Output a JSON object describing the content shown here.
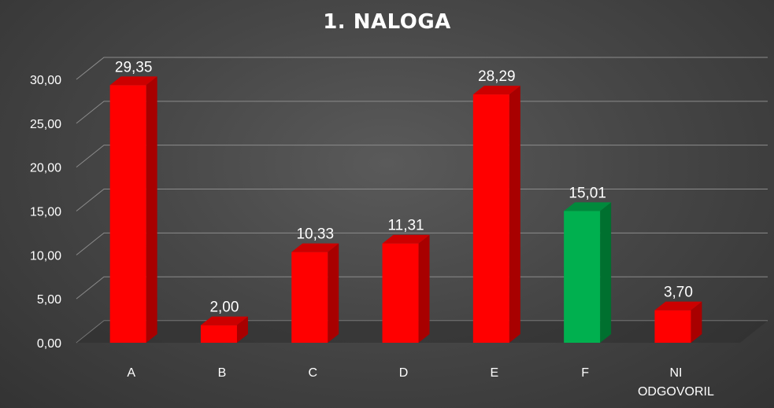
{
  "chart_data": {
    "type": "bar",
    "title": "1. NALOGA",
    "categories": [
      [
        "A"
      ],
      [
        "B"
      ],
      [
        "C"
      ],
      [
        "D"
      ],
      [
        "E"
      ],
      [
        "F"
      ],
      [
        "NI",
        "ODGOVORIL"
      ]
    ],
    "values": [
      29.35,
      2.0,
      10.33,
      11.31,
      28.29,
      15.01,
      3.7
    ],
    "data_labels": [
      "29,35",
      "2,00",
      "10,33",
      "11,31",
      "28,29",
      "15,01",
      "3,70"
    ],
    "ytick_labels": [
      "0,00",
      "5,00",
      "10,00",
      "15,00",
      "20,00",
      "25,00",
      "30,00"
    ],
    "ylim": [
      0,
      30
    ],
    "grid": true,
    "style": "3d-column",
    "colors": {
      "default_bar": "#ff0000",
      "default_bar_side": "#a80000",
      "default_bar_top": "#cc0000",
      "highlight_bar": "#00b04f",
      "highlight_bar_side": "#00702f",
      "highlight_bar_top": "#008a3c",
      "gridline": "#8c8c8c",
      "text": "#ffffff"
    },
    "highlight_index": 5
  }
}
